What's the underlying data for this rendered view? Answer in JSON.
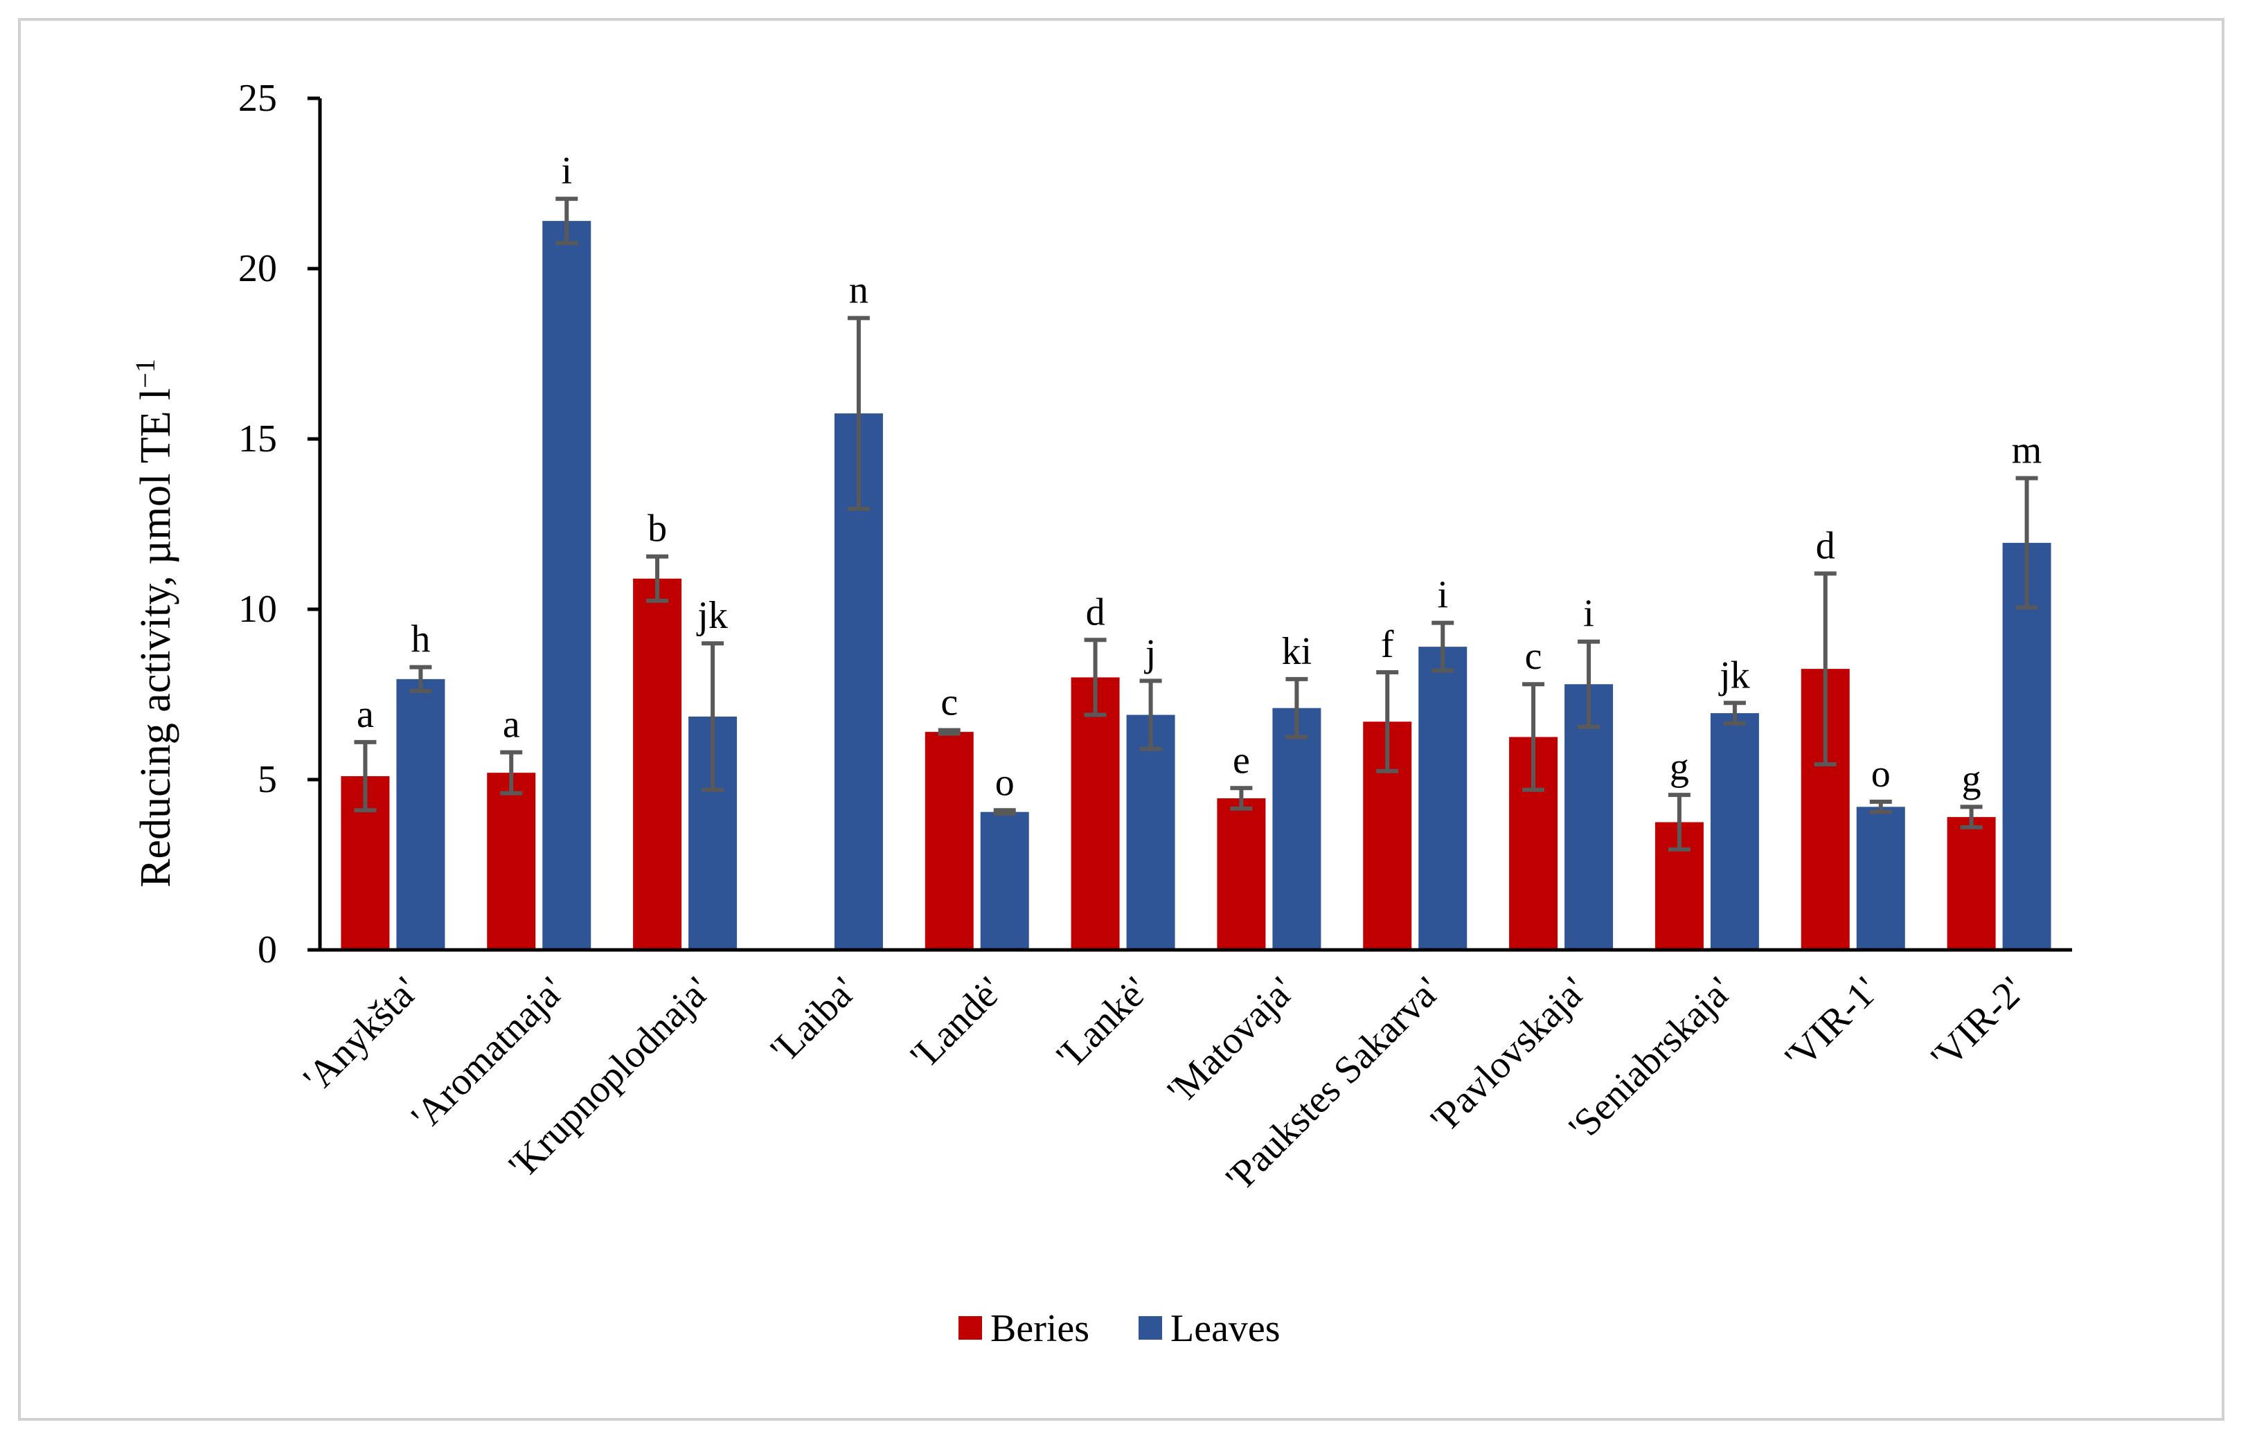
{
  "chart_data": {
    "type": "bar",
    "ylabel": "Reducing activity, µmol TE l",
    "ylabel_superscript": "−1",
    "ylim": [
      0,
      25
    ],
    "yticks": [
      0,
      5,
      10,
      15,
      20,
      25
    ],
    "grid": false,
    "legend_position": "bottom",
    "categories": [
      "'Anykšta'",
      "'Aromatnaja'",
      "'Krupnoplodnaja'",
      "'Laiba'",
      "'Landė'",
      "'Lankė'",
      "'Matovaja'",
      "'Paukstes Sakarva'",
      "'Pavlovskaja'",
      "'Seniabrskaja'",
      "'VIR-1'",
      "'VIR-2'"
    ],
    "series": [
      {
        "name": "Beries",
        "color": "#c00000",
        "values": [
          5.1,
          5.2,
          10.9,
          null,
          6.4,
          8.0,
          4.45,
          6.7,
          6.25,
          3.75,
          8.25,
          3.9
        ],
        "errors": [
          1.0,
          0.6,
          0.65,
          null,
          0.05,
          1.1,
          0.3,
          1.45,
          1.55,
          0.8,
          2.8,
          0.3
        ],
        "labels": [
          "a",
          "a",
          "b",
          "",
          "c",
          "d",
          "e",
          "f",
          "c",
          "g",
          "d",
          "g"
        ]
      },
      {
        "name": "Leaves",
        "color": "#2f5597",
        "values": [
          7.95,
          21.4,
          6.85,
          15.75,
          4.05,
          6.9,
          7.1,
          8.9,
          7.8,
          6.95,
          4.2,
          11.95
        ],
        "errors": [
          0.35,
          0.65,
          2.15,
          2.8,
          0.05,
          1.0,
          0.85,
          0.7,
          1.25,
          0.3,
          0.15,
          1.9
        ],
        "labels": [
          "h",
          "i",
          "jk",
          "n",
          "o",
          "j",
          "ki",
          "i",
          "i",
          "jk",
          "o",
          "m"
        ]
      }
    ]
  }
}
